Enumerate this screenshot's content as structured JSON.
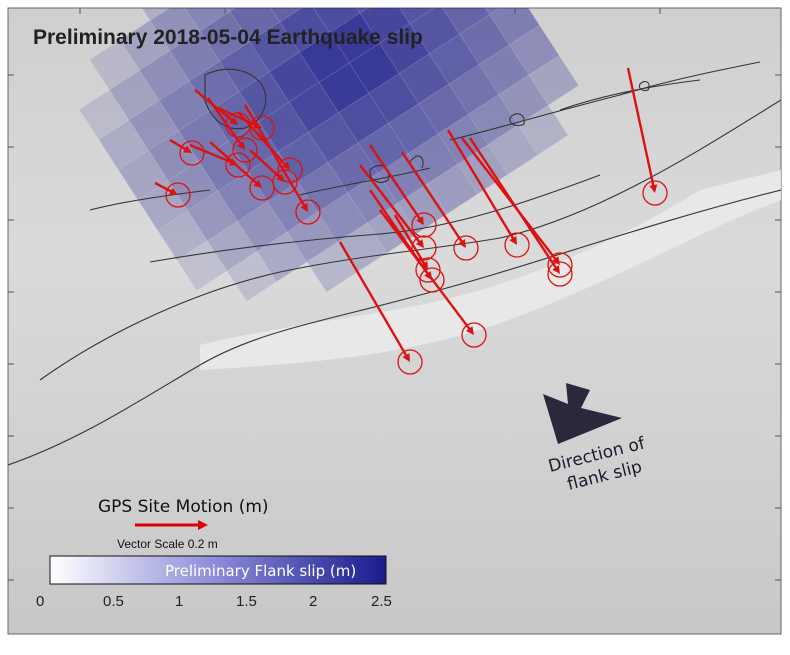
{
  "title": "Preliminary 2018-05-04 Earthquake slip",
  "gps_legend": {
    "title": "GPS Site Motion (m)",
    "scale_label": "Vector Scale 0.2 m",
    "arrow_color": "#e00000"
  },
  "colorbar": {
    "label": "Preliminary Flank slip (m)",
    "ticks": [
      "0",
      "0.5",
      "1",
      "1.5",
      "2",
      "2.5"
    ],
    "color_low": "#ffffff",
    "color_high": "#1a1a8c"
  },
  "annotation": {
    "line1": "Direction of",
    "line2": "flank slip"
  },
  "colors": {
    "background_relief": "#d2d2d2",
    "gps_arrow": "#dd1111",
    "slip_max": "#1a1a8c",
    "fault_lines": "#333333"
  }
}
